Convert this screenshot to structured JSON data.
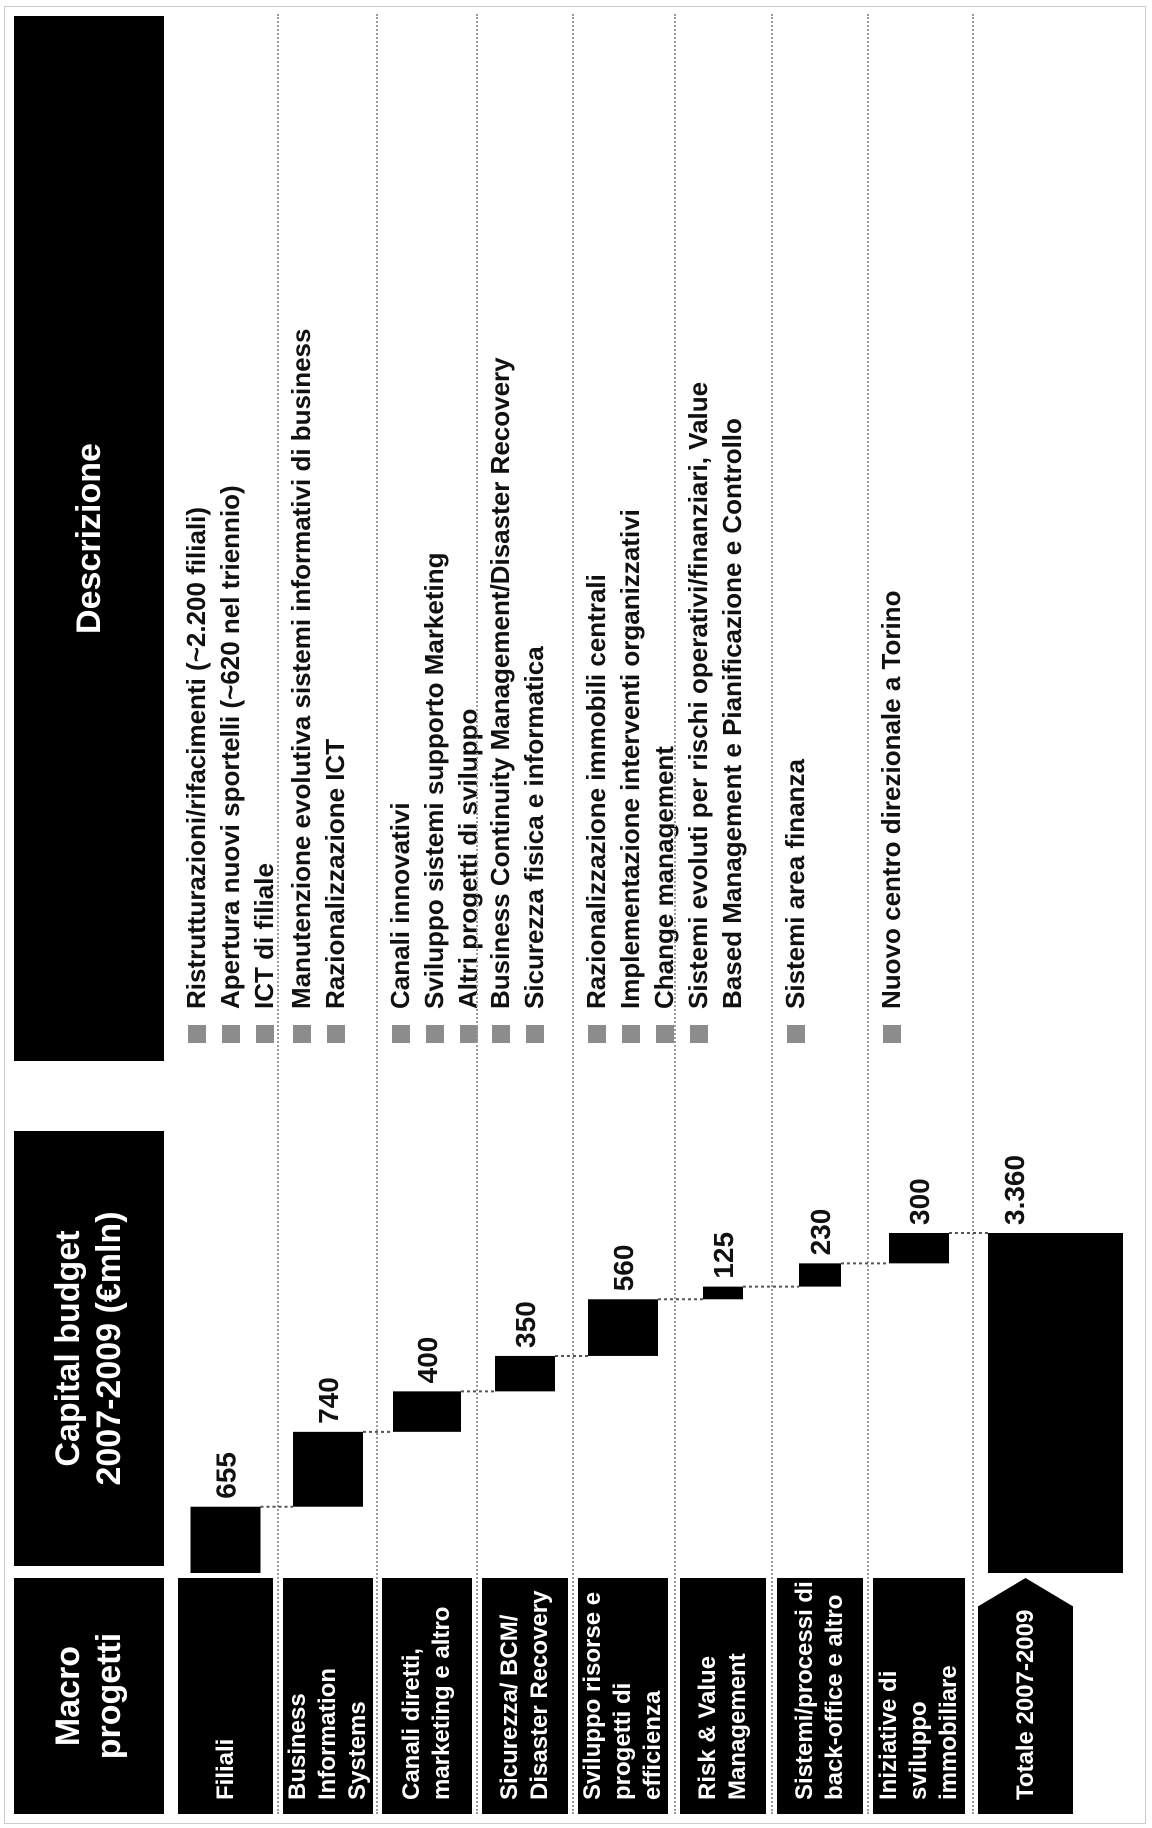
{
  "headers": {
    "macro": "Macro progetti",
    "budget_line1": "Capital budget",
    "budget_line2": "2007-2009 (€mln)",
    "descr": "Descrizione"
  },
  "rows": [
    {
      "macro_lines": [
        "Filiali"
      ],
      "value_label": "655",
      "descr": [
        {
          "text": "Ristrutturazioni/rifacimenti (~2.200 filiali)",
          "bullet": true
        },
        {
          "text": "Apertura nuovi sportelli (~620 nel triennio)",
          "bullet": true
        },
        {
          "text": "ICT di filiale",
          "bullet": true
        }
      ]
    },
    {
      "macro_lines": [
        "Business Information",
        "Systems"
      ],
      "value_label": "740",
      "descr": [
        {
          "text": "Manutenzione evolutiva sistemi informativi di business",
          "bullet": true
        },
        {
          "text": "Razionalizzazione ICT",
          "bullet": true
        }
      ]
    },
    {
      "macro_lines": [
        "Canali diretti,",
        "marketing e altro"
      ],
      "value_label": "400",
      "descr": [
        {
          "text": "Canali innovativi",
          "bullet": true
        },
        {
          "text": "Sviluppo sistemi supporto Marketing",
          "bullet": true
        },
        {
          "text": "Altri progetti di sviluppo",
          "bullet": true
        }
      ]
    },
    {
      "macro_lines": [
        "Sicurezza/ BCM/",
        "Disaster Recovery"
      ],
      "value_label": "350",
      "descr": [
        {
          "text": "Business Continuity Management/Disaster Recovery",
          "bullet": true
        },
        {
          "text": "Sicurezza fisica e informatica",
          "bullet": true
        }
      ]
    },
    {
      "macro_lines": [
        "Sviluppo risorse e",
        "progetti di efficienza"
      ],
      "value_label": "560",
      "descr": [
        {
          "text": "Razionalizzazione immobili centrali",
          "bullet": true
        },
        {
          "text": "Implementazione interventi organizzativi",
          "bullet": true
        },
        {
          "text": "Change management",
          "bullet": true
        }
      ]
    },
    {
      "macro_lines": [
        "Risk & Value",
        "Management"
      ],
      "value_label": "125",
      "descr": [
        {
          "text": "Sistemi evoluti per rischi operativi/finanziari, Value",
          "bullet": true
        },
        {
          "text": "Based Management e Pianificazione e Controllo",
          "bullet": false
        }
      ]
    },
    {
      "macro_lines": [
        "Sistemi/processi di",
        "back-office e altro"
      ],
      "value_label": "230",
      "descr": [
        {
          "text": "Sistemi area finanza",
          "bullet": true
        }
      ]
    },
    {
      "macro_lines": [
        "Iniziative di sviluppo",
        "immobiliare"
      ],
      "value_label": "300",
      "descr": [
        {
          "text": "Nuovo centro direzionale a Torino",
          "bullet": true
        }
      ]
    },
    {
      "macro_lines": [
        "Totale 2007-2009"
      ],
      "value_label": "3.360",
      "descr": []
    }
  ],
  "chart_data": {
    "type": "waterfall",
    "unit": "€mln",
    "categories": [
      "Filiali",
      "Business Information Systems",
      "Canali diretti, marketing e altro",
      "Sicurezza/ BCM/ Disaster Recovery",
      "Sviluppo risorse e progetti di efficienza",
      "Risk & Value Management",
      "Sistemi/processi di back-office e altro",
      "Iniziative di sviluppo immobiliare",
      "Totale 2007-2009"
    ],
    "values": [
      655,
      740,
      400,
      350,
      560,
      125,
      230,
      300,
      3360
    ],
    "total_index": 8,
    "bar_color": "#000000",
    "connector_style": "dotted"
  },
  "colors": {
    "bar": "#000000",
    "bullet": "#8c8c8c",
    "header_bg": "#000000",
    "header_text": "#ffffff"
  }
}
